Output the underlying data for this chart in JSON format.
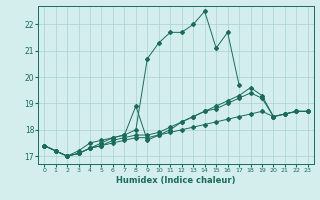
{
  "xlabel": "Humidex (Indice chaleur)",
  "ylabel": "",
  "bg_color": "#d4eeee",
  "grid_color": "#aad0d0",
  "line_color": "#1a6b5a",
  "xlim": [
    -0.5,
    23.5
  ],
  "ylim": [
    16.7,
    22.7
  ],
  "yticks": [
    17,
    18,
    19,
    20,
    21,
    22
  ],
  "xticks": [
    0,
    1,
    2,
    3,
    4,
    5,
    6,
    7,
    8,
    9,
    10,
    11,
    12,
    13,
    14,
    15,
    16,
    17,
    18,
    19,
    20,
    21,
    22,
    23
  ],
  "lines": [
    {
      "x": [
        0,
        1,
        2,
        3,
        4,
        5,
        6,
        7,
        8,
        9,
        10,
        11,
        12,
        13,
        14,
        15,
        16,
        17,
        18,
        19,
        20,
        21,
        22,
        23
      ],
      "y": [
        17.4,
        17.2,
        17.0,
        17.1,
        17.3,
        17.5,
        17.7,
        17.8,
        18.0,
        20.7,
        21.3,
        21.7,
        21.7,
        22.0,
        22.5,
        21.1,
        21.7,
        19.7,
        null,
        null,
        null,
        null,
        null,
        null
      ]
    },
    {
      "x": [
        0,
        1,
        2,
        3,
        4,
        5,
        6,
        7,
        8,
        9,
        10,
        11,
        12,
        13,
        14,
        15,
        16,
        17,
        18,
        19,
        20,
        21,
        22,
        23
      ],
      "y": [
        17.4,
        17.2,
        17.0,
        17.2,
        17.5,
        17.6,
        17.7,
        17.8,
        18.9,
        17.6,
        17.8,
        18.0,
        18.3,
        18.5,
        18.7,
        18.9,
        19.1,
        19.3,
        19.6,
        19.3,
        18.5,
        18.6,
        18.7,
        18.7
      ]
    },
    {
      "x": [
        0,
        1,
        2,
        3,
        4,
        5,
        6,
        7,
        8,
        9,
        10,
        11,
        12,
        13,
        14,
        15,
        16,
        17,
        18,
        19,
        20,
        21,
        22,
        23
      ],
      "y": [
        17.4,
        17.2,
        17.0,
        17.1,
        17.3,
        17.4,
        17.6,
        17.7,
        17.8,
        17.8,
        17.9,
        18.1,
        18.3,
        18.5,
        18.7,
        18.8,
        19.0,
        19.2,
        19.4,
        19.2,
        18.5,
        18.6,
        18.7,
        18.7
      ]
    },
    {
      "x": [
        0,
        1,
        2,
        3,
        4,
        5,
        6,
        7,
        8,
        9,
        10,
        11,
        12,
        13,
        14,
        15,
        16,
        17,
        18,
        19,
        20,
        21,
        22,
        23
      ],
      "y": [
        17.4,
        17.2,
        17.0,
        17.1,
        17.3,
        17.4,
        17.5,
        17.6,
        17.7,
        17.7,
        17.8,
        17.9,
        18.0,
        18.1,
        18.2,
        18.3,
        18.4,
        18.5,
        18.6,
        18.7,
        18.5,
        18.6,
        18.7,
        18.7
      ]
    }
  ]
}
